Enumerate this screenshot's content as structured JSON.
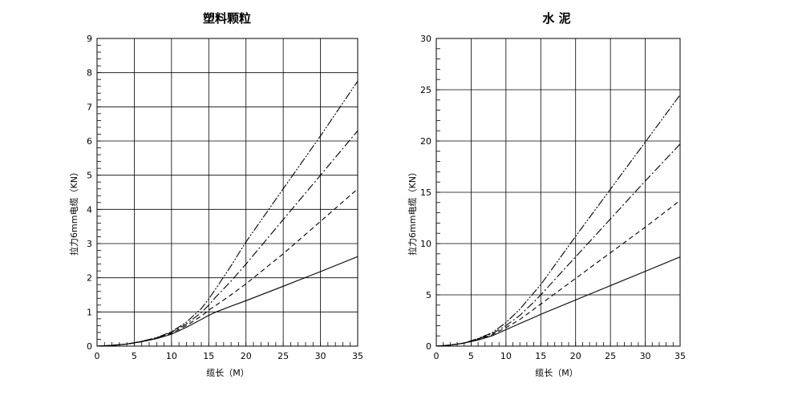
{
  "chart_data": [
    {
      "type": "line",
      "title": "塑料颗粒",
      "xlabel": "缆长（M）",
      "ylabel": "拉力6mm电缆（KN）",
      "xlim": [
        0,
        35
      ],
      "ylim": [
        0,
        9
      ],
      "x_ticks": [
        0,
        5,
        10,
        15,
        20,
        25,
        30,
        35
      ],
      "y_ticks": [
        0,
        1,
        2,
        3,
        4,
        5,
        6,
        7,
        8,
        9
      ],
      "grid": true,
      "series": [
        {
          "style": "solid",
          "x": [
            0,
            2,
            4,
            6,
            8,
            10,
            12,
            14,
            15,
            16,
            18,
            20,
            25,
            30,
            35
          ],
          "y": [
            0,
            0.02,
            0.06,
            0.13,
            0.22,
            0.35,
            0.55,
            0.78,
            0.9,
            1.0,
            1.17,
            1.33,
            1.75,
            2.18,
            2.62
          ]
        },
        {
          "style": "dashed",
          "x": [
            0,
            2,
            4,
            6,
            8,
            10,
            12,
            14,
            15,
            16,
            18,
            20,
            25,
            30,
            35
          ],
          "y": [
            0,
            0.02,
            0.06,
            0.13,
            0.23,
            0.38,
            0.6,
            0.88,
            1.05,
            1.2,
            1.5,
            1.82,
            2.7,
            3.65,
            4.6
          ]
        },
        {
          "style": "dashdot",
          "x": [
            0,
            2,
            4,
            6,
            8,
            10,
            12,
            14,
            15,
            16,
            18,
            20,
            25,
            30,
            35
          ],
          "y": [
            0,
            0.02,
            0.06,
            0.14,
            0.24,
            0.4,
            0.65,
            0.98,
            1.2,
            1.45,
            1.9,
            2.4,
            3.7,
            5.0,
            6.3
          ]
        },
        {
          "style": "dashdotdot",
          "x": [
            0,
            2,
            4,
            6,
            8,
            10,
            12,
            14,
            15,
            16,
            18,
            20,
            25,
            30,
            35
          ],
          "y": [
            0,
            0.02,
            0.06,
            0.14,
            0.25,
            0.42,
            0.7,
            1.1,
            1.38,
            1.7,
            2.35,
            3.05,
            4.6,
            6.15,
            7.75
          ]
        }
      ]
    },
    {
      "type": "line",
      "title": "水 泥",
      "xlabel": "缆长（M）",
      "ylabel": "拉力6mm电缆（KN）",
      "xlim": [
        0,
        35
      ],
      "ylim": [
        0,
        30
      ],
      "x_ticks": [
        0,
        5,
        10,
        15,
        20,
        25,
        30,
        35
      ],
      "y_ticks": [
        0,
        5,
        10,
        15,
        20,
        25,
        30
      ],
      "grid": true,
      "series": [
        {
          "style": "solid",
          "x": [
            0,
            2,
            4,
            6,
            8,
            10,
            12,
            14,
            15,
            20,
            25,
            30,
            35
          ],
          "y": [
            0,
            0.1,
            0.3,
            0.6,
            1.0,
            1.6,
            2.2,
            2.8,
            3.1,
            4.5,
            5.9,
            7.3,
            8.7
          ]
        },
        {
          "style": "dashed",
          "x": [
            0,
            2,
            4,
            6,
            8,
            10,
            12,
            14,
            15,
            20,
            25,
            30,
            35
          ],
          "y": [
            0,
            0.1,
            0.3,
            0.65,
            1.1,
            1.8,
            2.6,
            3.6,
            4.1,
            6.6,
            9.1,
            11.6,
            14.2
          ]
        },
        {
          "style": "dashdot",
          "x": [
            0,
            2,
            4,
            6,
            8,
            10,
            12,
            14,
            15,
            20,
            25,
            30,
            35
          ],
          "y": [
            0,
            0.1,
            0.3,
            0.7,
            1.2,
            2.0,
            3.0,
            4.3,
            5.0,
            8.7,
            12.4,
            16.1,
            19.7
          ]
        },
        {
          "style": "dashdotdot",
          "x": [
            0,
            2,
            4,
            6,
            8,
            10,
            12,
            14,
            15,
            20,
            25,
            30,
            35
          ],
          "y": [
            0,
            0.1,
            0.3,
            0.75,
            1.3,
            2.3,
            3.6,
            5.2,
            6.0,
            10.7,
            15.3,
            19.9,
            24.5
          ]
        }
      ]
    }
  ]
}
